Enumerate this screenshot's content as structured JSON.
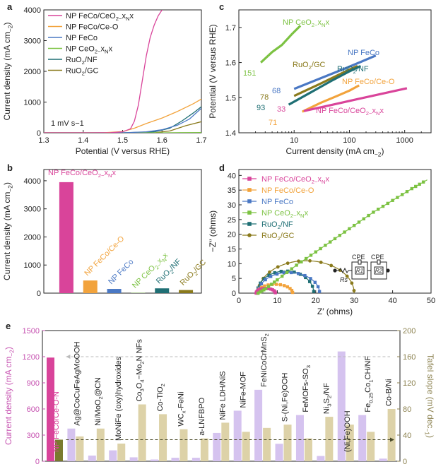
{
  "colors": {
    "pink": "#d9449a",
    "orange": "#f2a33c",
    "blue": "#4a78c4",
    "green": "#7cc242",
    "teal": "#1f6f74",
    "olive": "#8a7a1c",
    "lavender": "#d5c3ef",
    "tan": "#ddd2a8",
    "olive_axis": "#8c8250",
    "magenta_axis": "#c651b0"
  },
  "chart_data": [
    {
      "panel": "a",
      "type": "line",
      "panel_label": "a",
      "xlabel": "Potential (V versus RHE)",
      "ylabel": "Current density (mA cm−2)",
      "ylabel_parts": [
        "Current density (mA cm",
        "−2",
        ")"
      ],
      "xlim": [
        1.3,
        1.7
      ],
      "ylim": [
        0,
        4000
      ],
      "xticks": [
        "1.3",
        "1.4",
        "1.5",
        "1.6",
        "1.7"
      ],
      "yticks": [
        "0",
        "1000",
        "2000",
        "3000",
        "4000"
      ],
      "annotation": "1 mV s−1",
      "legend": [
        {
          "label": "NP FeCo/CeO2−xNx",
          "parts": [
            "NP FeCo/CeO",
            "2−",
            "x",
            "N",
            "x"
          ],
          "color": "pink"
        },
        {
          "label": "NP FeCo/Ce-O",
          "parts": [
            "NP FeCo/Ce-O"
          ],
          "color": "orange"
        },
        {
          "label": "NP FeCo",
          "parts": [
            "NP FeCo"
          ],
          "color": "blue"
        },
        {
          "label": "NP CeO2−xNx",
          "parts": [
            "NP CeO",
            "2−",
            "x",
            "N",
            "x"
          ],
          "color": "green"
        },
        {
          "label": "RuO2/NF",
          "parts": [
            "RuO",
            "2",
            "/NF"
          ],
          "color": "teal"
        },
        {
          "label": "RuO2/GC",
          "parts": [
            "RuO",
            "2",
            "/GC"
          ],
          "color": "olive"
        }
      ],
      "series": [
        {
          "name": "NP FeCo/CeO2−xNx",
          "color": "pink",
          "x": [
            1.3,
            1.42,
            1.47,
            1.5,
            1.52,
            1.53,
            1.54,
            1.55,
            1.56,
            1.57,
            1.58,
            1.59,
            1.6
          ],
          "y": [
            0,
            0,
            5,
            30,
            130,
            380,
            900,
            1700,
            2500,
            3100,
            3500,
            3800,
            4000
          ]
        },
        {
          "name": "NP FeCo/Ce-O",
          "color": "orange",
          "x": [
            1.3,
            1.45,
            1.5,
            1.53,
            1.56,
            1.6,
            1.64,
            1.68,
            1.7
          ],
          "y": [
            0,
            0,
            40,
            150,
            300,
            480,
            700,
            950,
            1100
          ]
        },
        {
          "name": "NP FeCo",
          "color": "blue",
          "x": [
            1.3,
            1.5,
            1.56,
            1.6,
            1.64,
            1.67,
            1.7
          ],
          "y": [
            0,
            0,
            30,
            100,
            250,
            450,
            800
          ]
        },
        {
          "name": "NP CeO2−xNx",
          "color": "green",
          "x": [
            1.3,
            1.6,
            1.7
          ],
          "y": [
            0,
            0,
            10
          ]
        },
        {
          "name": "RuO2/NF",
          "color": "teal",
          "x": [
            1.3,
            1.5,
            1.58,
            1.62,
            1.65,
            1.68,
            1.7
          ],
          "y": [
            0,
            0,
            30,
            150,
            380,
            650,
            850
          ]
        },
        {
          "name": "RuO2/GC",
          "color": "olive",
          "x": [
            1.3,
            1.58,
            1.62,
            1.66,
            1.7
          ],
          "y": [
            0,
            0,
            60,
            230,
            360
          ]
        }
      ]
    },
    {
      "panel": "b",
      "type": "bar",
      "panel_label": "b",
      "ylabel": "Current density (mA cm−2)",
      "ylabel_parts": [
        "Current density (mA cm",
        "−2",
        ")"
      ],
      "ylim": [
        0,
        4400
      ],
      "yticks": [
        "0",
        "1000",
        "2000",
        "3000",
        "4000"
      ],
      "categories": [
        "NP FeCo/CeO2−xNx",
        "NP FeCo/Ce-O",
        "NP FeCo",
        "NP CeO2−xNx",
        "RuO2/NF",
        "RuO2/GC"
      ],
      "category_parts": [
        [
          "NP FeCo/CeO",
          "2−",
          "x",
          "N",
          "x"
        ],
        [
          "NP FeCo/Ce-O"
        ],
        [
          "NP FeCo"
        ],
        [
          "NP CeO",
          "2−",
          "x",
          "N",
          "x"
        ],
        [
          "RuO",
          "2",
          "/NF"
        ],
        [
          "RuO",
          "2",
          "/GC"
        ]
      ],
      "values": [
        3950,
        450,
        150,
        10,
        170,
        110
      ],
      "colors": [
        "pink",
        "orange",
        "blue",
        "green",
        "teal",
        "olive"
      ]
    },
    {
      "panel": "c",
      "type": "line",
      "panel_label": "c",
      "xlabel": "Current density (mA cm−2)",
      "xlabel_parts": [
        "Current density (mA cm",
        "−2",
        ")"
      ],
      "ylabel": "Potential (V versus RHE)",
      "xscale": "log",
      "xlim": [
        1,
        3000
      ],
      "ylim": [
        1.4,
        1.75
      ],
      "xticks": [
        "10",
        "100",
        "1000"
      ],
      "yticks": [
        "1.4",
        "1.5",
        "1.6",
        "1.7"
      ],
      "series": [
        {
          "name": "NP CeO2−xNx",
          "parts": [
            "NP CeO",
            "2−",
            "x",
            "N",
            "x"
          ],
          "slope": "151",
          "color": "green",
          "x": [
            2.5,
            4,
            6,
            9,
            13
          ],
          "y": [
            1.6,
            1.63,
            1.65,
            1.68,
            1.705
          ]
        },
        {
          "name": "NP FeCo",
          "parts": [
            "NP FeCo"
          ],
          "slope": "68",
          "color": "blue",
          "x": [
            10,
            30,
            80,
            150,
            300
          ],
          "y": [
            1.525,
            1.555,
            1.582,
            1.6,
            1.62
          ]
        },
        {
          "name": "RuO2/GC",
          "parts": [
            "RuO",
            "2",
            "/GC"
          ],
          "slope": "78",
          "color": "olive",
          "x": [
            10,
            30,
            60,
            100,
            140
          ],
          "y": [
            1.505,
            1.54,
            1.563,
            1.58,
            1.59
          ]
        },
        {
          "name": "RuO2/NF",
          "parts": [
            "RuO",
            "2",
            "/NF"
          ],
          "slope": "93",
          "color": "teal",
          "x": [
            8,
            20,
            50,
            100,
            160
          ],
          "y": [
            1.48,
            1.515,
            1.55,
            1.575,
            1.59
          ]
        },
        {
          "name": "NP FeCo/Ce-O",
          "parts": [
            "NP FeCo/Ce-O"
          ],
          "slope": "71",
          "color": "orange",
          "x": [
            14,
            30,
            60,
            100,
            150
          ],
          "y": [
            1.46,
            1.485,
            1.505,
            1.52,
            1.535
          ]
        },
        {
          "name": "NP FeCo/CeO2−xNx",
          "parts": [
            "NP FeCo/CeO",
            "2−",
            "x",
            "N",
            "x"
          ],
          "slope": "33",
          "color": "pink",
          "x": [
            15,
            50,
            150,
            500,
            1100
          ],
          "y": [
            1.462,
            1.48,
            1.497,
            1.515,
            1.527
          ]
        }
      ]
    },
    {
      "panel": "d",
      "type": "scatter",
      "panel_label": "d",
      "xlabel": "Z′ (ohms)",
      "ylabel": "−Z″ (ohms)",
      "xlim": [
        0,
        50
      ],
      "ylim": [
        0,
        42
      ],
      "xticks": [
        "0",
        "10",
        "20",
        "30",
        "40",
        "50"
      ],
      "yticks": [
        "0",
        "5",
        "10",
        "15",
        "20",
        "25",
        "30",
        "35",
        "40"
      ],
      "legend": [
        {
          "label": "NP FeCo/CeO2−xNx",
          "parts": [
            "NP FeCo/CeO",
            "2−",
            "x",
            "N",
            "x"
          ],
          "color": "pink",
          "marker": "square"
        },
        {
          "label": "NP FeCo/Ce-O",
          "parts": [
            "NP FeCo/Ce-O"
          ],
          "color": "orange",
          "marker": "square"
        },
        {
          "label": "NP FeCo",
          "parts": [
            "NP FeCo"
          ],
          "color": "blue",
          "marker": "square"
        },
        {
          "label": "NP CeO2−xNx",
          "parts": [
            "NP CeO",
            "2−",
            "x",
            "N",
            "x"
          ],
          "color": "green",
          "marker": "square"
        },
        {
          "label": "RuO2/NF",
          "parts": [
            "RuO",
            "2",
            "/NF"
          ],
          "color": "teal",
          "marker": "square"
        },
        {
          "label": "RuO2/GC",
          "parts": [
            "RuO",
            "2",
            "/GC"
          ],
          "color": "olive",
          "marker": "circle"
        }
      ],
      "series": [
        {
          "name": "NP FeCo/CeO2−xNx",
          "color": "pink",
          "arc": [
            4.5,
            9.5,
            1.6
          ]
        },
        {
          "name": "NP FeCo/Ce-O",
          "color": "orange",
          "arc": [
            4.8,
            14,
            3
          ]
        },
        {
          "name": "NP FeCo",
          "color": "blue",
          "arc": [
            5,
            21,
            7
          ]
        },
        {
          "name": "RuO2/NF",
          "color": "teal",
          "arc": [
            4.8,
            19.5,
            7.5
          ]
        },
        {
          "name": "RuO2/GC",
          "color": "olive",
          "arc": [
            5,
            30,
            11
          ]
        },
        {
          "name": "NP CeO2−xNx",
          "color": "green",
          "line": [
            [
              5,
              0
            ],
            [
              7,
              1.5
            ],
            [
              10,
              4.5
            ],
            [
              15,
              9.5
            ],
            [
              20,
              14
            ],
            [
              25,
              18.5
            ],
            [
              30,
              23
            ],
            [
              35,
              27.5
            ],
            [
              40,
              31.5
            ],
            [
              45,
              35.5
            ],
            [
              49,
              38.5
            ]
          ]
        }
      ],
      "circuit_labels": {
        "cpe1": "CPE",
        "cpe2": "CPE",
        "rs": "Rs",
        "r1": "R1",
        "r2": "R2"
      }
    },
    {
      "panel": "e",
      "type": "bar",
      "panel_label": "e",
      "ylabel_left": "Current density (mA cm−2)",
      "ylabel_left_parts": [
        "Current density (mA cm",
        "−2",
        ")"
      ],
      "ylabel_right": "Tafel slope (mV dec−1)",
      "ylabel_right_parts": [
        "Tafel slope (mV dec",
        "−1",
        ")"
      ],
      "ylim_left": [
        0,
        1500
      ],
      "ylim_right": [
        0,
        200
      ],
      "yticks_left": [
        "0",
        "300",
        "600",
        "900",
        "1200",
        "1500"
      ],
      "yticks_right": [
        "0",
        "40",
        "80",
        "120",
        "160",
        "200"
      ],
      "reference_current": 1200,
      "reference_tafel": 33,
      "categories": [
        "NP FeCo/Ce-O-N",
        "Ag@CoCuFeAgMoOOH",
        "Ni/MoO2@CN",
        "MoNiFe (oxy)hydroxides",
        "Co3O4−Mo2N NFs",
        "Co-TiO2",
        "WCx-FeNi",
        "a-LNFBPO",
        "NiFe LDH/NiS",
        "NiFe-MOF",
        "FeNiCoCrMnS2",
        "S-(Ni,Fe)OOH",
        "FeMOFs-SO3",
        "Ni3S2/NF",
        "(Ni,Fe)OOH",
        "Fe0.25Co1CH/NF",
        "Co-B/Ni"
      ],
      "category_parts": [
        [
          "NP FeCo/Ce-O-N"
        ],
        [
          "Ag@CoCuFeAgMoOOH"
        ],
        [
          "Ni/MoO",
          "2",
          "@CN"
        ],
        [
          "MoNiFe (oxy)hydroxides"
        ],
        [
          "Co",
          "3",
          "O",
          "4",
          "−Mo",
          "2",
          "N NFs"
        ],
        [
          "Co-TiO",
          "2"
        ],
        [
          "WC",
          "x",
          "-FeNi"
        ],
        [
          "a-LNFBPO"
        ],
        [
          "NiFe LDH/NiS"
        ],
        [
          "NiFe-MOF"
        ],
        [
          "FeNiCoCrMnS",
          "2"
        ],
        [
          "S-(Ni,Fe)OOH"
        ],
        [
          "FeMOFs-SO",
          "3"
        ],
        [
          "Ni",
          "3",
          "S",
          "2",
          "/NF"
        ],
        [
          "(Ni,Fe)OOH"
        ],
        [
          "Fe",
          "0.25",
          "Co",
          "1",
          "CH/NF"
        ],
        [
          "Co-B/Ni"
        ]
      ],
      "current_values": [
        1190,
        375,
        65,
        125,
        45,
        20,
        40,
        40,
        325,
        580,
        820,
        200,
        530,
        60,
        1260,
        530,
        30
      ],
      "tafel_values": [
        33,
        38,
        50,
        27,
        87,
        72,
        49,
        35,
        59,
        45,
        51,
        56,
        35,
        68,
        56,
        45,
        80
      ]
    }
  ]
}
